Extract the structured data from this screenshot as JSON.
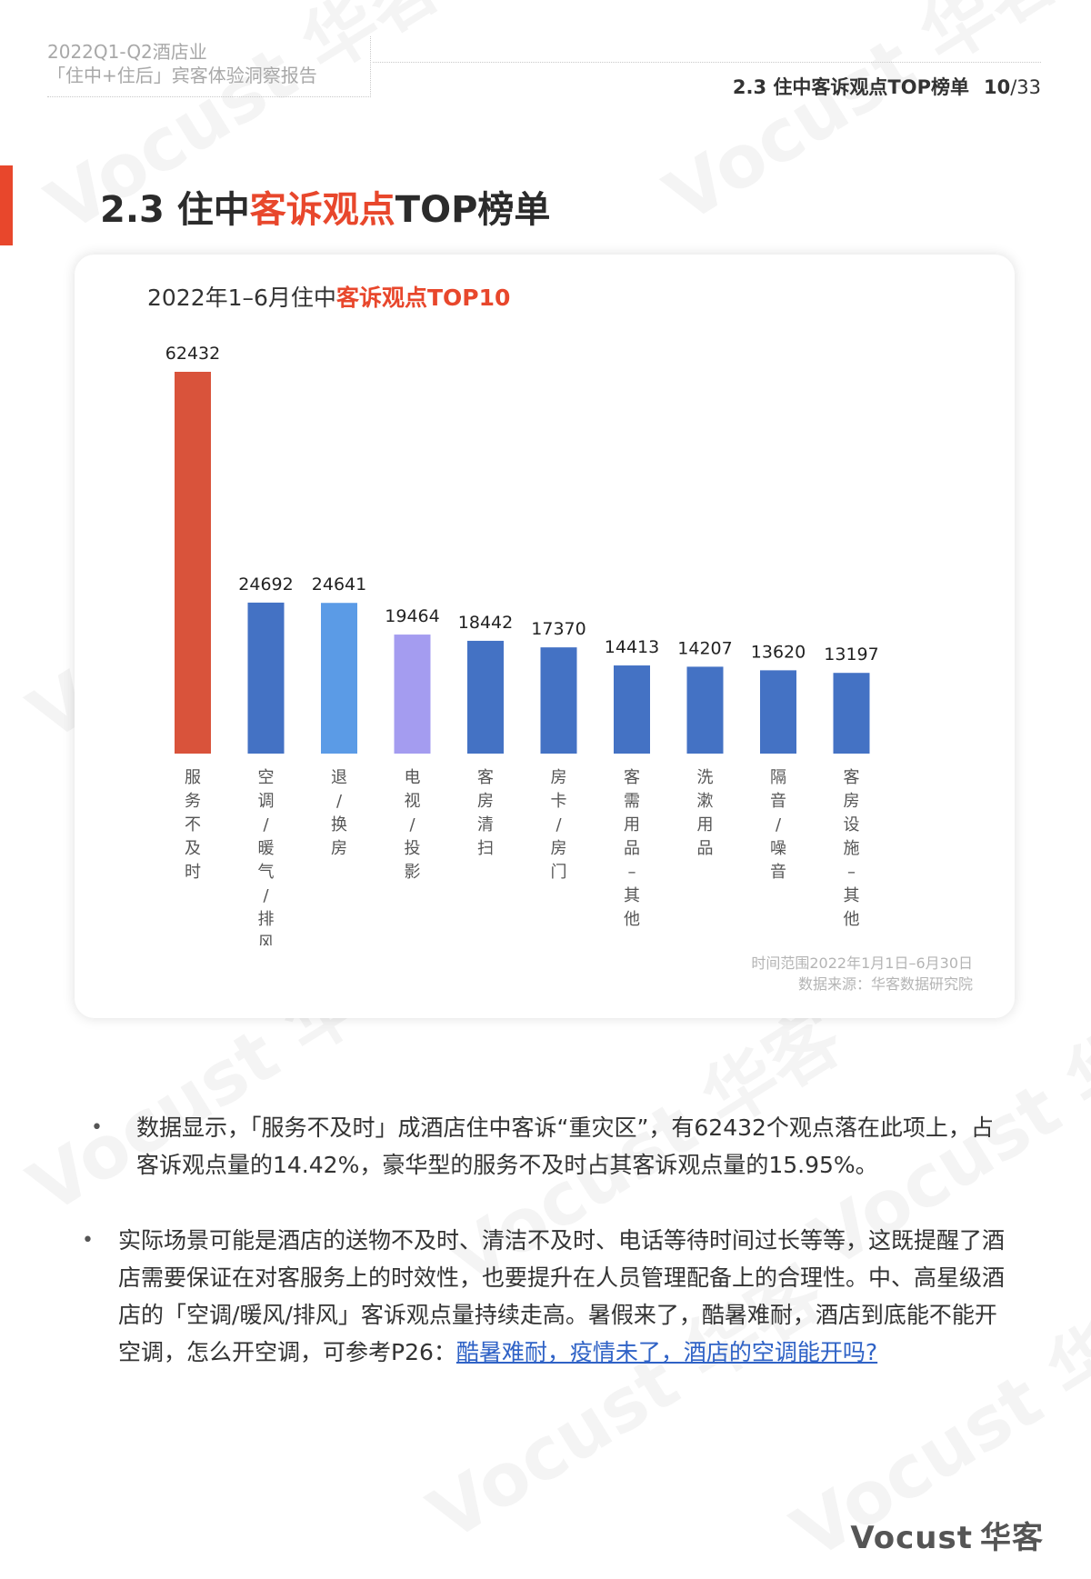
{
  "header": {
    "report_line1": "2022Q1-Q2酒店业",
    "report_line2": "「住中+住后」宾客体验洞察报告",
    "section_label": "2.3 住中客诉观点TOP榜单",
    "page_current": "10",
    "page_total": "/33"
  },
  "title": {
    "prefix": "2.3 住中",
    "highlight": "客诉观点",
    "suffix": "TOP榜单"
  },
  "chart_title": {
    "prefix": "2022年1–6月住中",
    "highlight": "客诉观点TOP10"
  },
  "chart_data": {
    "type": "bar",
    "categories": [
      "服务不及时",
      "空调/暖气/排风",
      "退/换房",
      "电视/投影",
      "客房清扫",
      "房卡/房门",
      "客需用品–其他",
      "洗漱用品",
      "隔音/噪音",
      "客房设施–其他"
    ],
    "values": [
      62432,
      24692,
      24641,
      19464,
      18442,
      17370,
      14413,
      14207,
      13620,
      13197
    ],
    "colors": [
      "#d9533b",
      "#4472c4",
      "#5b9be6",
      "#a49cf0",
      "#4472c4",
      "#4472c4",
      "#4472c4",
      "#4472c4",
      "#4472c4",
      "#4472c4"
    ],
    "ylim": [
      0,
      62432
    ],
    "grid": false,
    "title": "2022年1–6月住中客诉观点TOP10",
    "xlabel": "",
    "ylabel": ""
  },
  "source": {
    "line1": "时间范围2022年1月1日–6月30日",
    "line2": "数据来源：华客数据研究院"
  },
  "bullets": {
    "b1": "数据显示，「服务不及时」成酒店住中客诉“重灾区”，有62432个观点落在此项上，占客诉观点量的14.42%，豪华型的服务不及时占其客诉观点量的15.95%。",
    "b2_text": "实际场景可能是酒店的送物不及时、清洁不及时、电话等待时间过长等等，这既提醒了酒店需要保证在对客服务上的时效性，也要提升在人员管理配备上的合理性。中、高星级酒店的「空调/暖风/排风」客诉观点量持续走高。暑假来了，酷暑难耐，酒店到底能不能开空调，怎么开空调，可参考P26：",
    "b2_link": "酷暑难耐，疫情未了，酒店的空调能开吗?",
    "marker": "•"
  },
  "logo": {
    "en": "Vocust",
    "cn": "华客"
  },
  "watermark": "Vocust 华客"
}
